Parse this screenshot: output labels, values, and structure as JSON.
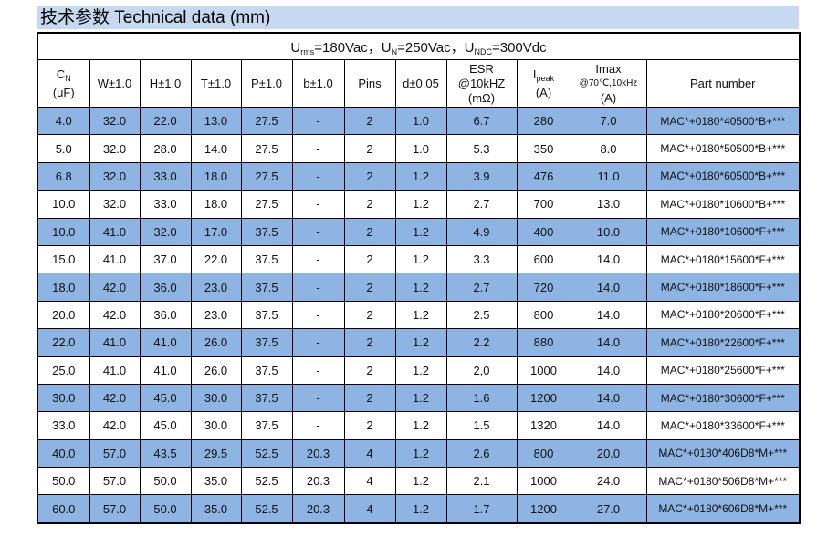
{
  "header": {
    "title": "技术参数 Technical data (mm)"
  },
  "table": {
    "conditions": [
      {
        "text": "U",
        "sub": "rms"
      },
      {
        "text": "=180Vac，U",
        "sub": "N"
      },
      {
        "text": "=250Vac，U",
        "sub": "NDC"
      },
      {
        "text": "=300Vdc"
      }
    ],
    "columns": [
      [
        {
          "text": "C",
          "sub": "N"
        },
        {
          "text": "(uF)"
        }
      ],
      [
        {
          "text": "W±1.0"
        }
      ],
      [
        {
          "text": "H±1.0"
        }
      ],
      [
        {
          "text": "T±1.0"
        }
      ],
      [
        {
          "text": "P±1.0"
        }
      ],
      [
        {
          "text": "b±1.0"
        }
      ],
      [
        {
          "text": "Pins"
        }
      ],
      [
        {
          "text": "d±0.05"
        }
      ],
      [
        {
          "text": "ESR"
        },
        {
          "text": "@10kHZ"
        },
        {
          "text": "(mΩ)"
        }
      ],
      [
        {
          "text": "I",
          "sub": "peak"
        },
        {
          "text": "(A)"
        }
      ],
      [
        {
          "text": "Imax"
        },
        {
          "text": "@70℃,10kHz"
        },
        {
          "text": "(A)"
        }
      ],
      [
        {
          "text": "Part number"
        }
      ]
    ],
    "rows": [
      [
        "4.0",
        "32.0",
        "22.0",
        "13.0",
        "27.5",
        "-",
        "2",
        "1.0",
        "6.7",
        "280",
        "7.0",
        "MAC*+0180*40500*B+***"
      ],
      [
        "5.0",
        "32.0",
        "28.0",
        "14.0",
        "27.5",
        "-",
        "2",
        "1.0",
        "5.3",
        "350",
        "8.0",
        "MAC*+0180*50500*B+***"
      ],
      [
        "6.8",
        "32.0",
        "33.0",
        "18.0",
        "27.5",
        "-",
        "2",
        "1.2",
        "3.9",
        "476",
        "11.0",
        "MAC*+0180*60500*B+***"
      ],
      [
        "10.0",
        "32.0",
        "33.0",
        "18.0",
        "27.5",
        "-",
        "2",
        "1.2",
        "2.7",
        "700",
        "13.0",
        "MAC*+0180*10600*B+***"
      ],
      [
        "10.0",
        "41.0",
        "32.0",
        "17.0",
        "37.5",
        "-",
        "2",
        "1.2",
        "4.9",
        "400",
        "10.0",
        "MAC*+0180*10600*F+***"
      ],
      [
        "15.0",
        "41.0",
        "37.0",
        "22.0",
        "37.5",
        "-",
        "2",
        "1.2",
        "3.3",
        "600",
        "14.0",
        "MAC*+0180*15600*F+***"
      ],
      [
        "18.0",
        "42.0",
        "36.0",
        "23.0",
        "37.5",
        "-",
        "2",
        "1.2",
        "2.7",
        "720",
        "14.0",
        "MAC*+0180*18600*F+***"
      ],
      [
        "20.0",
        "42.0",
        "36.0",
        "23.0",
        "37.5",
        "-",
        "2",
        "1.2",
        "2.5",
        "800",
        "14.0",
        "MAC*+0180*20600*F+***"
      ],
      [
        "22.0",
        "41.0",
        "41.0",
        "26.0",
        "37.5",
        "-",
        "2",
        "1.2",
        "2.2",
        "880",
        "14.0",
        "MAC*+0180*22600*F+***"
      ],
      [
        "25.0",
        "41.0",
        "41.0",
        "26.0",
        "37.5",
        "-",
        "2",
        "1.2",
        "2,0",
        "1000",
        "14.0",
        "MAC*+0180*25600*F+***"
      ],
      [
        "30.0",
        "42.0",
        "45.0",
        "30.0",
        "37.5",
        "-",
        "2",
        "1.2",
        "1.6",
        "1200",
        "14.0",
        "MAC*+0180*30600*F+***"
      ],
      [
        "33.0",
        "42.0",
        "45.0",
        "30.0",
        "37.5",
        "-",
        "2",
        "1.2",
        "1.5",
        "1320",
        "14.0",
        "MAC*+0180*33600*F+***"
      ],
      [
        "40.0",
        "57.0",
        "43.5",
        "29.5",
        "52.5",
        "20.3",
        "4",
        "1.2",
        "2.6",
        "800",
        "20.0",
        "MAC*+0180*406D8*M+***"
      ],
      [
        "50.0",
        "57.0",
        "50.0",
        "35.0",
        "52.5",
        "20.3",
        "4",
        "1.2",
        "2.1",
        "1000",
        "24.0",
        "MAC*+0180*506D8*M+***"
      ],
      [
        "60.0",
        "57.0",
        "50.0",
        "35.0",
        "52.5",
        "20.3",
        "4",
        "1.2",
        "1.7",
        "1200",
        "27.0",
        "MAC*+0180*606D8*M+***"
      ]
    ]
  }
}
